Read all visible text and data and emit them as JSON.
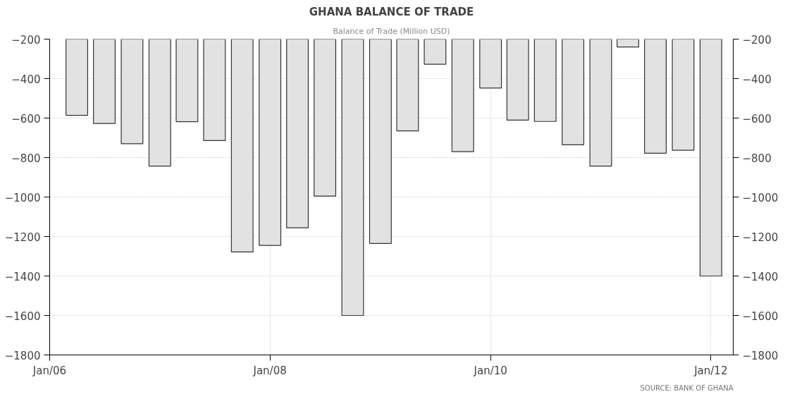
{
  "chart_data": {
    "type": "bar",
    "title": "GHANA BALANCE OF TRADE",
    "subtitle": "Balance of Trade (Million USD)",
    "x": [
      "2006-04",
      "2006-07",
      "2006-10",
      "2007-01",
      "2007-04",
      "2007-07",
      "2007-10",
      "2008-01",
      "2008-04",
      "2008-07",
      "2008-10",
      "2009-01",
      "2009-04",
      "2009-07",
      "2009-10",
      "2010-01",
      "2010-04",
      "2010-07",
      "2010-10",
      "2011-01",
      "2011-04",
      "2011-07",
      "2011-10",
      "2012-01"
    ],
    "values": [
      -586,
      -627,
      -730,
      -843,
      -618,
      -714,
      -1278,
      -1245,
      -1156,
      -995,
      -1600,
      -1235,
      -665,
      -327,
      -770,
      -448,
      -610,
      -617,
      -735,
      -843,
      -240,
      -778,
      -763,
      -1400
    ],
    "color": "#e2e2e2",
    "xlim": [
      "2006-01",
      "2012-03-15"
    ],
    "xticks": [
      {
        "value": "2006-01",
        "label": "Jan/06"
      },
      {
        "value": "2008-01",
        "label": "Jan/08"
      },
      {
        "value": "2010-01",
        "label": "Jan/10"
      },
      {
        "value": "2012-01",
        "label": "Jan/12"
      }
    ],
    "ylim": [
      -1800,
      -200
    ],
    "yticks": [
      -1800,
      -1600,
      -1400,
      -1200,
      -1000,
      -800,
      -600,
      -400,
      -200
    ],
    "y2lim": [
      -1800,
      -200
    ],
    "y2ticks": [
      -1800,
      -1600,
      -1400,
      -1200,
      -1000,
      -800,
      -600,
      -400,
      -200
    ],
    "grid": true,
    "annotations": [
      "SOURCE: BANK OF GHANA"
    ]
  }
}
